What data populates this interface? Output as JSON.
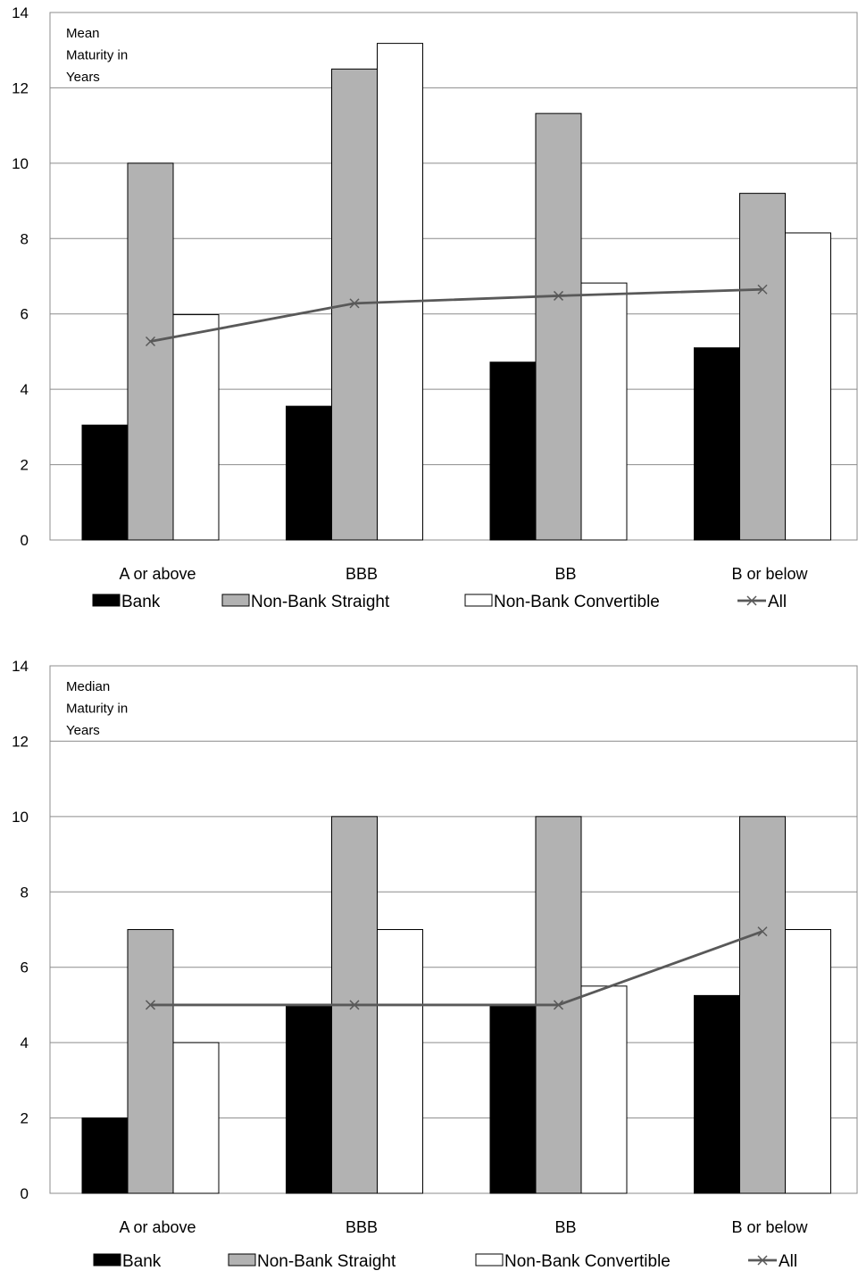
{
  "chart_data": [
    {
      "type": "bar",
      "categories": [
        "A or above",
        "BBB",
        "BB",
        "B or below"
      ],
      "series": [
        {
          "name": "Bank",
          "kind": "bar",
          "color": "#000000",
          "values": [
            3.05,
            3.55,
            4.72,
            5.1
          ]
        },
        {
          "name": "Non-Bank Straight",
          "kind": "bar",
          "color": "#b2b2b2",
          "values": [
            10.0,
            12.5,
            11.32,
            9.2
          ]
        },
        {
          "name": "Non-Bank Convertible",
          "kind": "bar",
          "color": "#ffffff",
          "values": [
            5.98,
            13.18,
            6.82,
            8.15
          ]
        },
        {
          "name": "All",
          "kind": "line",
          "color": "#595959",
          "marker": "x",
          "values": [
            5.27,
            6.28,
            6.48,
            6.65
          ]
        }
      ],
      "annotation": [
        "Mean",
        "Maturity in",
        "Years"
      ],
      "yticks": [
        "0",
        "2",
        "4",
        "6",
        "8",
        "10",
        "12",
        "14"
      ],
      "ylim": [
        0,
        14
      ],
      "grid": true,
      "legend_position": "bottom"
    },
    {
      "type": "bar",
      "categories": [
        "A or above",
        "BBB",
        "BB",
        "B or below"
      ],
      "series": [
        {
          "name": "Bank",
          "kind": "bar",
          "color": "#000000",
          "values": [
            2.0,
            5.0,
            5.0,
            5.25
          ]
        },
        {
          "name": "Non-Bank Straight",
          "kind": "bar",
          "color": "#b2b2b2",
          "values": [
            7.0,
            10.0,
            10.0,
            10.0
          ]
        },
        {
          "name": "Non-Bank Convertible",
          "kind": "bar",
          "color": "#ffffff",
          "values": [
            4.0,
            7.0,
            5.5,
            7.0
          ]
        },
        {
          "name": "All",
          "kind": "line",
          "color": "#595959",
          "marker": "x",
          "values": [
            5.0,
            5.0,
            5.0,
            6.95
          ]
        }
      ],
      "annotation": [
        "Median",
        "Maturity in",
        "Years"
      ],
      "yticks": [
        "0",
        "2",
        "4",
        "6",
        "8",
        "10",
        "12",
        "14"
      ],
      "ylim": [
        0,
        14
      ],
      "grid": true,
      "legend_position": "bottom"
    }
  ]
}
